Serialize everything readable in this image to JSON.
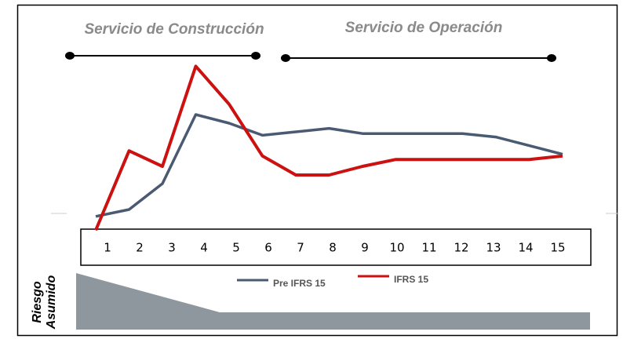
{
  "chart_data": {
    "type": "line",
    "headers": [
      "Servicio de Construcción",
      "Servicio de Operación"
    ],
    "side_label": [
      "Riesgo",
      "Asumido"
    ],
    "categories": [
      1,
      2,
      3,
      4,
      5,
      6,
      7,
      8,
      9,
      10,
      11,
      12,
      13,
      14,
      15
    ],
    "series": [
      {
        "name": "Pre IFRS 15",
        "color": "#4a5a72",
        "values": [
          11,
          15,
          30,
          70,
          65,
          58,
          60,
          62,
          59,
          59,
          59,
          59,
          57,
          52,
          47
        ]
      },
      {
        "name": "IFRS 15",
        "color": "#cc1111",
        "values": [
          3,
          49,
          40,
          98,
          76,
          46,
          35,
          35,
          40,
          44,
          44,
          44,
          44,
          44,
          46
        ]
      }
    ],
    "ylim": [
      0,
      100
    ]
  }
}
